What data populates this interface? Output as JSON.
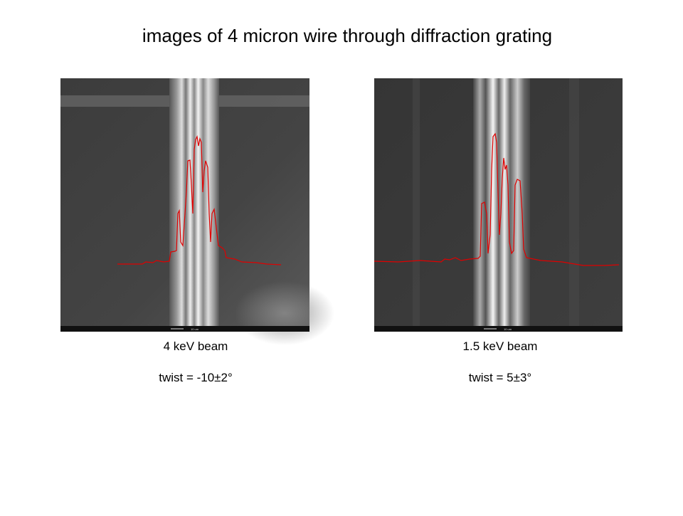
{
  "title": "images of 4 micron wire through diffraction grating",
  "panels": [
    {
      "scale_label": "10 um",
      "caption": "4 keV beam",
      "twist": "twist = -10±2°"
    },
    {
      "scale_label": "10 um",
      "caption": "1.5 keV beam",
      "twist": "twist = 5±3°"
    }
  ]
}
